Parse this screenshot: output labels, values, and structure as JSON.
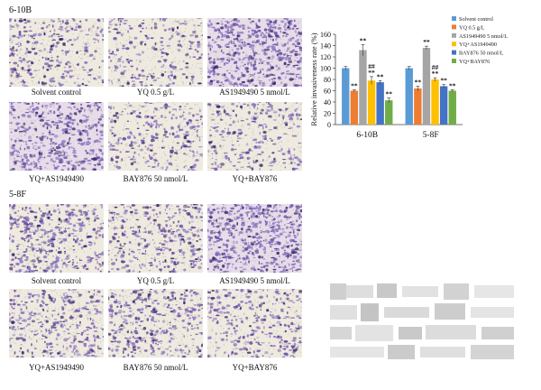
{
  "sections": [
    {
      "label": "6-10B",
      "panels": [
        {
          "caption": "Solvent control",
          "density": 0.45
        },
        {
          "caption": "YQ 0.5 g/L",
          "density": 0.35
        },
        {
          "caption": "AS1949490 5 nmol/L",
          "density": 0.9
        },
        {
          "caption": "YQ+AS1949490",
          "density": 0.75
        },
        {
          "caption": "BAY876 50 nmol/L",
          "density": 0.4
        },
        {
          "caption": "YQ+BAY876",
          "density": 0.38
        }
      ]
    },
    {
      "label": "5-8F",
      "panels": [
        {
          "caption": "Solvent control",
          "density": 0.7
        },
        {
          "caption": "YQ 0.5 g/L",
          "density": 0.55
        },
        {
          "caption": "AS1949490 5 nmol/L",
          "density": 0.95
        },
        {
          "caption": "YQ+AS1949490",
          "density": 0.55
        },
        {
          "caption": "BAY876 50 nmol/L",
          "density": 0.6
        },
        {
          "caption": "YQ+BAY876",
          "density": 0.45
        }
      ]
    }
  ],
  "chart_data": {
    "type": "bar",
    "ylabel": "Relative invasiveness rate (%)",
    "ylim": [
      0,
      160
    ],
    "yticks": [
      0,
      20,
      40,
      60,
      80,
      100,
      120,
      140,
      160
    ],
    "categories": [
      "6-10B",
      "5-8F"
    ],
    "legend_position": "top-right",
    "series": [
      {
        "name": "Solvent control",
        "color": "#5b9bd5",
        "values": [
          100,
          100
        ],
        "errors": [
          3,
          3
        ],
        "marks": [
          "",
          ""
        ]
      },
      {
        "name": "YQ 0.5 g/L",
        "color": "#ed7d31",
        "values": [
          60,
          64
        ],
        "errors": [
          2,
          4
        ],
        "marks": [
          "**",
          "**"
        ]
      },
      {
        "name": "AS1949490 5 nmol/L",
        "color": "#a5a5a5",
        "values": [
          132,
          136
        ],
        "errors": [
          10,
          3
        ],
        "marks": [
          "**",
          "**"
        ]
      },
      {
        "name": "YQ+AS1949490",
        "color": "#ffc000",
        "values": [
          78,
          80
        ],
        "errors": [
          7,
          3
        ],
        "marks": [
          "##\n**",
          "##\n**"
        ]
      },
      {
        "name": "BAY876 50 nmol/L",
        "color": "#4472c4",
        "values": [
          75,
          68
        ],
        "errors": [
          3,
          3
        ],
        "marks": [
          "**",
          "**"
        ]
      },
      {
        "name": "YQ+BAY876",
        "color": "#70ad47",
        "values": [
          43,
          60
        ],
        "errors": [
          4,
          2
        ],
        "marks": [
          "**",
          "**"
        ]
      }
    ]
  }
}
